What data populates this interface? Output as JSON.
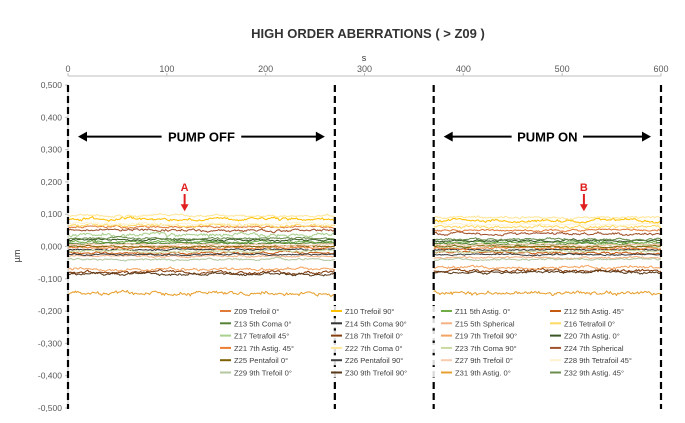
{
  "chart_data": {
    "type": "line",
    "title": "HIGH ORDER ABERRATIONS ( > Z09 )",
    "xlabel": "s",
    "ylabel": "µm",
    "xlim": [
      0,
      600
    ],
    "ylim": [
      -0.5,
      0.5
    ],
    "x_ticks": [
      "0",
      "100",
      "200",
      "300",
      "400",
      "500",
      "600"
    ],
    "y_ticks": [
      "0,500",
      "0,400",
      "0,300",
      "0,200",
      "0,100",
      "0,000",
      "-0,100",
      "-0,200",
      "-0,300",
      "-0,400",
      "-0,500"
    ],
    "x_axis_position": "top",
    "grid": false,
    "legend_position": "bottom-right",
    "annotations": [
      {
        "text": "PUMP OFF",
        "x_range": [
          0,
          270
        ],
        "y": 0.34
      },
      {
        "text": "PUMP ON",
        "x_range": [
          370,
          600
        ],
        "y": 0.34
      },
      {
        "text": "A",
        "x": 118,
        "y": 0.155,
        "color": "#e02020"
      },
      {
        "text": "B",
        "x": 522,
        "y": 0.155,
        "color": "#e02020"
      }
    ],
    "segment_boundaries": [
      0,
      270,
      370,
      600
    ],
    "data_gap": [
      270,
      370
    ],
    "series": [
      {
        "name": "Z09  Trefoil 0°",
        "color": "#e07b39",
        "off": 0.06,
        "on": 0.05,
        "noise": 0.004
      },
      {
        "name": "Z10 Trefoil 90°",
        "color": "#ffc000",
        "off": 0.085,
        "on": 0.08,
        "noise": 0.006
      },
      {
        "name": "Z11 5th Astig. 0°",
        "color": "#70ad47",
        "off": 0.015,
        "on": 0.012,
        "noise": 0.004
      },
      {
        "name": "Z12 5th Astig. 45°",
        "color": "#c55a11",
        "off": -0.02,
        "on": -0.02,
        "noise": 0.004
      },
      {
        "name": "Z13 5th Coma 0°",
        "color": "#548235",
        "off": 0.01,
        "on": 0.008,
        "noise": 0.003
      },
      {
        "name": "Z14 5th Coma 90°",
        "color": "#333333",
        "off": -0.01,
        "on": -0.01,
        "noise": 0.003
      },
      {
        "name": "Z15 5th Spherical",
        "color": "#f4b183",
        "off": -0.03,
        "on": -0.035,
        "noise": 0.004
      },
      {
        "name": "Z16 Tetrafoil 0°",
        "color": "#ffd966",
        "off": 0.065,
        "on": 0.06,
        "noise": 0.006
      },
      {
        "name": "Z17 Tetrafoil 45°",
        "color": "#a9d18e",
        "off": 0.035,
        "on": 0.0,
        "noise": 0.008
      },
      {
        "name": "Z18 7th Trefoil 0°",
        "color": "#843c0c",
        "off": -0.08,
        "on": -0.075,
        "noise": 0.006
      },
      {
        "name": "Z19 7th Trefoil 90°",
        "color": "#f4a460",
        "off": -0.07,
        "on": -0.065,
        "noise": 0.006
      },
      {
        "name": "Z20 7th Astig. 0°",
        "color": "#385723",
        "off": 0.02,
        "on": 0.018,
        "noise": 0.004
      },
      {
        "name": "Z21 7th Astig. 45°",
        "color": "#ed7d31",
        "off": -0.005,
        "on": -0.005,
        "noise": 0.004
      },
      {
        "name": "Z22 7th Coma 0°",
        "color": "#ffe699",
        "off": 0.095,
        "on": 0.09,
        "noise": 0.005
      },
      {
        "name": "Z23 7th Coma 90°",
        "color": "#c9d9a0",
        "off": -0.015,
        "on": -0.015,
        "noise": 0.004
      },
      {
        "name": "Z24 7th Spherical",
        "color": "#a0522d",
        "off": 0.05,
        "on": 0.04,
        "noise": 0.005
      },
      {
        "name": "Z25 Pentafoil 0°",
        "color": "#7f6000",
        "off": 0.0,
        "on": 0.0,
        "noise": 0.003
      },
      {
        "name": "Z26 Pentafoil 90°",
        "color": "#404040",
        "off": -0.025,
        "on": -0.025,
        "noise": 0.003
      },
      {
        "name": "Z27 9th Trefoil 0°",
        "color": "#f8cbad",
        "off": 0.005,
        "on": 0.005,
        "noise": 0.004
      },
      {
        "name": "Z28 9th Tetrafoil 45°",
        "color": "#fff2cc",
        "off": 0.07,
        "on": 0.068,
        "noise": 0.005
      },
      {
        "name": "Z29 9th Trefoil 0°",
        "color": "#b4c7a0",
        "off": -0.04,
        "on": -0.04,
        "noise": 0.004
      },
      {
        "name": "Z30 9th Trefoil 90°",
        "color": "#5a3a1a",
        "off": -0.085,
        "on": -0.08,
        "noise": 0.005
      },
      {
        "name": "Z31 9th Astig. 0°",
        "color": "#e8a030",
        "off": -0.145,
        "on": -0.145,
        "noise": 0.008
      },
      {
        "name": "Z32 9th Astig. 45°",
        "color": "#6b8e4e",
        "off": 0.025,
        "on": 0.022,
        "noise": 0.004
      }
    ]
  }
}
